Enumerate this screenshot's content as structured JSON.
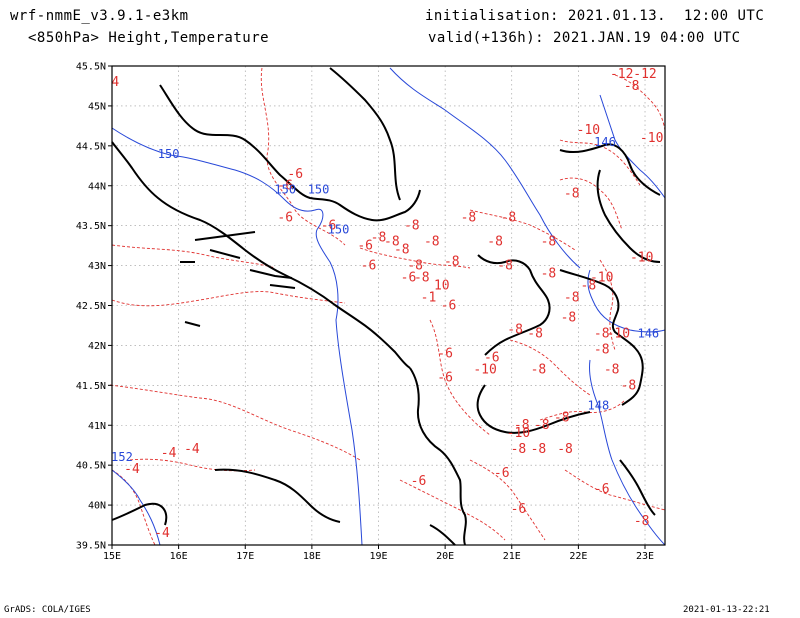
{
  "header": {
    "model": "wrf-nmmE_v3.9.1-e3km",
    "field": "<850hPa> Height,Temperature",
    "init": "initialisation: 2021.01.13.  12:00 UTC",
    "valid": "valid(+136h): 2021.JAN.19 04:00 UTC"
  },
  "footer": {
    "left": "GrADS: COLA/IGES",
    "right": "2021-01-13-22:21"
  },
  "map": {
    "lon_range": [
      15,
      23.3
    ],
    "lat_range": [
      39.5,
      45.5
    ],
    "lon_ticks": [
      "15E",
      "16E",
      "17E",
      "18E",
      "19E",
      "20E",
      "21E",
      "22E",
      "23E"
    ],
    "lat_ticks": [
      "45.5N",
      "45N",
      "44.5N",
      "44N",
      "43.5N",
      "43N",
      "42.5N",
      "42N",
      "41.5N",
      "41N",
      "40.5N",
      "40N",
      "39.5N"
    ],
    "colors": {
      "temperature": "#e0302e",
      "height": "#2848d8",
      "coast": "#000000",
      "grid": "#999999"
    },
    "temperature_labels": [
      {
        "text": "-12",
        "lon": 22.65,
        "lat": 45.35
      },
      {
        "text": "-12",
        "lon": 23.0,
        "lat": 45.35
      },
      {
        "text": "-8",
        "lon": 22.8,
        "lat": 45.2
      },
      {
        "text": "-10",
        "lon": 22.15,
        "lat": 44.65
      },
      {
        "text": "-10",
        "lon": 23.1,
        "lat": 44.55
      },
      {
        "text": "-8",
        "lon": 21.9,
        "lat": 43.85
      },
      {
        "text": "-6",
        "lon": 17.75,
        "lat": 44.1
      },
      {
        "text": "-6",
        "lon": 17.6,
        "lat": 43.95
      },
      {
        "text": "-6",
        "lon": 17.6,
        "lat": 43.55
      },
      {
        "text": "-6",
        "lon": 18.25,
        "lat": 43.45
      },
      {
        "text": "-8",
        "lon": 19.5,
        "lat": 43.45
      },
      {
        "text": "-8",
        "lon": 19.0,
        "lat": 43.3
      },
      {
        "text": "-8",
        "lon": 19.2,
        "lat": 43.25
      },
      {
        "text": "-6",
        "lon": 18.8,
        "lat": 43.2
      },
      {
        "text": "-8",
        "lon": 19.35,
        "lat": 43.15
      },
      {
        "text": "-8",
        "lon": 19.8,
        "lat": 43.25
      },
      {
        "text": "-8",
        "lon": 20.35,
        "lat": 43.55
      },
      {
        "text": "-8",
        "lon": 20.95,
        "lat": 43.55
      },
      {
        "text": "-8",
        "lon": 20.75,
        "lat": 43.25
      },
      {
        "text": "-8",
        "lon": 21.55,
        "lat": 43.25
      },
      {
        "text": "-8",
        "lon": 20.1,
        "lat": 43.0
      },
      {
        "text": "-8",
        "lon": 20.9,
        "lat": 42.95
      },
      {
        "text": "-8",
        "lon": 19.55,
        "lat": 42.95
      },
      {
        "text": "-6",
        "lon": 18.85,
        "lat": 42.95
      },
      {
        "text": "-6",
        "lon": 19.45,
        "lat": 42.8
      },
      {
        "text": "-8",
        "lon": 19.65,
        "lat": 42.8
      },
      {
        "text": "10",
        "lon": 19.95,
        "lat": 42.7
      },
      {
        "text": "-8",
        "lon": 21.55,
        "lat": 42.85
      },
      {
        "text": "-10",
        "lon": 22.35,
        "lat": 42.8
      },
      {
        "text": "-10",
        "lon": 22.95,
        "lat": 43.05
      },
      {
        "text": "-8",
        "lon": 21.9,
        "lat": 42.55
      },
      {
        "text": "-8",
        "lon": 22.15,
        "lat": 42.7
      },
      {
        "text": "-1",
        "lon": 19.75,
        "lat": 42.55
      },
      {
        "text": "-6",
        "lon": 20.05,
        "lat": 42.45
      },
      {
        "text": "-8",
        "lon": 21.05,
        "lat": 42.15
      },
      {
        "text": "-8",
        "lon": 21.35,
        "lat": 42.1
      },
      {
        "text": "-8",
        "lon": 21.85,
        "lat": 42.3
      },
      {
        "text": "-10",
        "lon": 22.6,
        "lat": 42.1
      },
      {
        "text": "-8",
        "lon": 22.35,
        "lat": 42.1
      },
      {
        "text": "-8",
        "lon": 22.35,
        "lat": 41.9
      },
      {
        "text": "-6",
        "lon": 20.0,
        "lat": 41.85
      },
      {
        "text": "-6",
        "lon": 20.7,
        "lat": 41.8
      },
      {
        "text": "-10",
        "lon": 20.6,
        "lat": 41.65
      },
      {
        "text": "-6",
        "lon": 20.0,
        "lat": 41.55
      },
      {
        "text": "-8",
        "lon": 21.4,
        "lat": 41.65
      },
      {
        "text": "-8",
        "lon": 22.5,
        "lat": 41.65
      },
      {
        "text": "-8",
        "lon": 22.75,
        "lat": 41.45
      },
      {
        "text": "-8",
        "lon": 21.75,
        "lat": 41.05
      },
      {
        "text": "-8",
        "lon": 21.45,
        "lat": 40.95
      },
      {
        "text": "-8",
        "lon": 21.15,
        "lat": 40.95
      },
      {
        "text": "-10",
        "lon": 21.1,
        "lat": 40.85
      },
      {
        "text": "-8",
        "lon": 21.1,
        "lat": 40.65
      },
      {
        "text": "-8",
        "lon": 21.4,
        "lat": 40.65
      },
      {
        "text": "-8",
        "lon": 21.8,
        "lat": 40.65
      },
      {
        "text": "-6",
        "lon": 20.85,
        "lat": 40.35
      },
      {
        "text": "-6",
        "lon": 19.6,
        "lat": 40.25
      },
      {
        "text": "-6",
        "lon": 22.35,
        "lat": 40.15
      },
      {
        "text": "-6",
        "lon": 21.1,
        "lat": 39.9
      },
      {
        "text": "-8",
        "lon": 22.95,
        "lat": 39.75
      },
      {
        "text": "-4",
        "lon": 15.85,
        "lat": 40.6
      },
      {
        "text": "-4",
        "lon": 16.2,
        "lat": 40.65
      },
      {
        "text": "-4",
        "lon": 15.3,
        "lat": 40.4
      },
      {
        "text": "-4",
        "lon": 15.75,
        "lat": 39.6
      },
      {
        "text": "4",
        "lon": 15.05,
        "lat": 45.25
      }
    ],
    "height_labels": [
      {
        "text": "150",
        "lon": 15.85,
        "lat": 44.35
      },
      {
        "text": "150",
        "lon": 17.6,
        "lat": 43.9
      },
      {
        "text": "150",
        "lon": 18.1,
        "lat": 43.9
      },
      {
        "text": "150",
        "lon": 18.4,
        "lat": 43.4
      },
      {
        "text": "146",
        "lon": 22.4,
        "lat": 44.5
      },
      {
        "text": "146",
        "lon": 23.05,
        "lat": 42.1
      },
      {
        "text": "148",
        "lon": 22.3,
        "lat": 41.2
      },
      {
        "text": "152",
        "lon": 15.15,
        "lat": 40.55
      }
    ]
  }
}
